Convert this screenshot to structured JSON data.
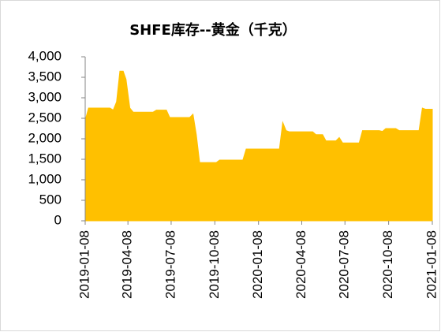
{
  "chart_data": {
    "type": "area",
    "title": "SHFE库存--黄金（千克）",
    "color": "#FFC000",
    "x": [
      "2019-01-08",
      "2019-01-15",
      "2019-03-01",
      "2019-03-08",
      "2019-03-15",
      "2019-03-22",
      "2019-03-29",
      "2019-04-04",
      "2019-04-12",
      "2019-04-19",
      "2019-05-31",
      "2019-06-07",
      "2019-06-28",
      "2019-07-05",
      "2019-08-16",
      "2019-08-23",
      "2019-08-30",
      "2019-09-06",
      "2019-10-11",
      "2019-10-18",
      "2019-12-06",
      "2019-12-13",
      "2020-02-21",
      "2020-02-28",
      "2020-03-06",
      "2020-03-13",
      "2020-05-01",
      "2020-05-08",
      "2020-05-22",
      "2020-05-29",
      "2020-06-19",
      "2020-06-26",
      "2020-07-03",
      "2020-08-07",
      "2020-08-14",
      "2020-09-18",
      "2020-09-25",
      "2020-10-02",
      "2020-10-23",
      "2020-10-30",
      "2020-12-11",
      "2020-12-18",
      "2020-12-25",
      "2021-01-08"
    ],
    "values": [
      2450,
      2750,
      2750,
      2700,
      2900,
      3650,
      3650,
      3450,
      2750,
      2650,
      2650,
      2700,
      2700,
      2520,
      2520,
      2600,
      2100,
      1420,
      1420,
      1480,
      1480,
      1750,
      1750,
      2400,
      2200,
      2170,
      2170,
      2100,
      2100,
      1950,
      1950,
      2030,
      1900,
      1900,
      2200,
      2200,
      2180,
      2250,
      2250,
      2200,
      2200,
      2750,
      2720,
      2720
    ],
    "xlim": [
      "2019-01-08",
      "2021-01-08"
    ],
    "xticks": [
      "2019-01-08",
      "2019-04-08",
      "2019-07-08",
      "2019-10-08",
      "2020-01-08",
      "2020-04-08",
      "2020-07-08",
      "2020-10-08",
      "2021-01-08"
    ],
    "ylim": [
      0,
      4000
    ],
    "yticks": [
      0,
      500,
      {
        "value": 1000,
        "label": "1,000"
      },
      {
        "value": 1500,
        "label": "1,500"
      },
      {
        "value": 2000,
        "label": "2,000"
      },
      {
        "value": 2500,
        "label": "2,500"
      },
      {
        "value": 3000,
        "label": "3,000"
      },
      {
        "value": 3500,
        "label": "3,500"
      },
      {
        "value": 4000,
        "label": "4,000"
      }
    ]
  }
}
